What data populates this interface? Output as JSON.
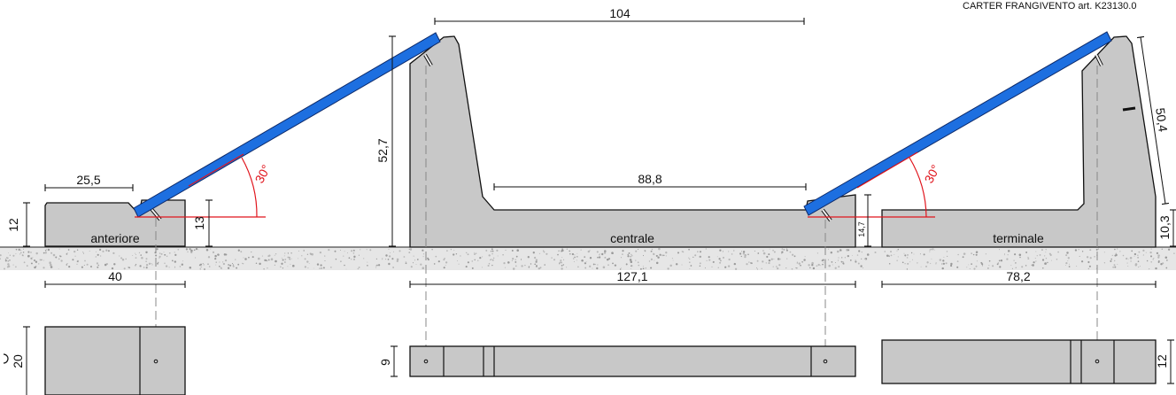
{
  "header": {
    "title": "CARTER FRANGIVENTO art. K23130.0"
  },
  "pieces": {
    "front": {
      "label": "anteriore"
    },
    "central": {
      "label": "centrale"
    },
    "terminal": {
      "label": "terminale"
    }
  },
  "dimensions": {
    "front_top_width": "25,5",
    "front_height_left": "12",
    "front_height_right": "13",
    "front_length": "40",
    "front_plan_width": "20",
    "central_top_span": "104",
    "central_height": "52,7",
    "central_inner_span": "88,8",
    "central_step_height": "14,7",
    "central_length": "127,1",
    "central_plan_width": "9",
    "terminal_slope": "50,4",
    "terminal_height": "10,3",
    "terminal_length": "78,2",
    "terminal_plan_width": "12"
  },
  "angles": {
    "left": "30°",
    "right": "30°"
  },
  "colors": {
    "panel": "#1d6fe0",
    "concrete": "#c8c8c8",
    "angle_lines": "#e0141c",
    "ground": "#e6e6e6"
  }
}
